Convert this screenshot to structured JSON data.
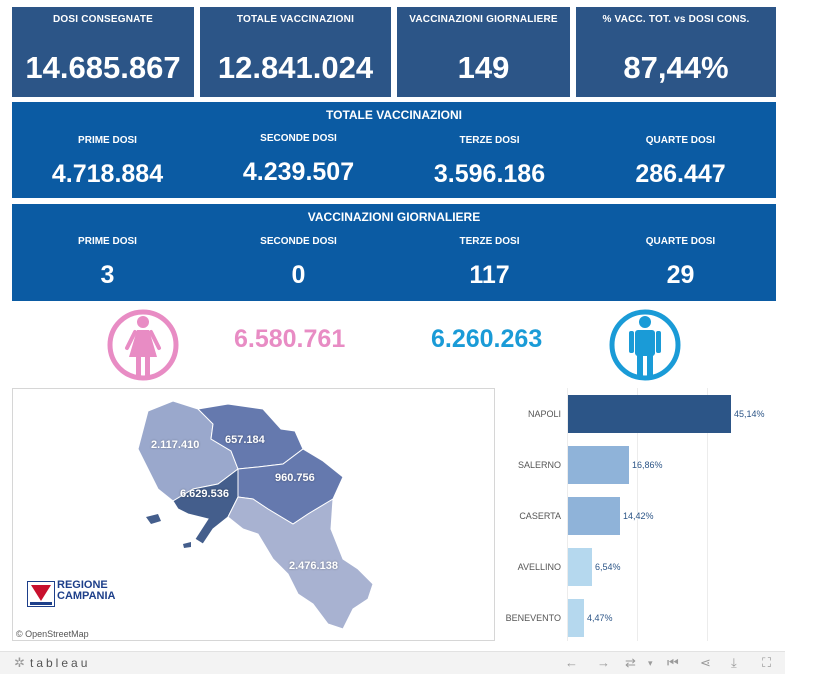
{
  "kpis": [
    {
      "label": "DOSI  CONSEGNATE",
      "value": "14.685.867"
    },
    {
      "label": "TOTALE VACCINAZIONI",
      "value": "12.841.024"
    },
    {
      "label": "VACCINAZIONI GIORNALIERE",
      "value": "149"
    },
    {
      "label": "% VACC. TOT. vs DOSI CONS.",
      "value": "87,44%"
    }
  ],
  "totale": {
    "title": "TOTALE VACCINAZIONI",
    "cols": [
      {
        "label": "PRIME DOSI",
        "value": "4.718.884"
      },
      {
        "label": "SECONDE DOSI",
        "value": "4.239.507"
      },
      {
        "label": "TERZE DOSI",
        "value": "3.596.186"
      },
      {
        "label": "QUARTE DOSI",
        "value": "286.447"
      }
    ]
  },
  "giornaliere": {
    "title": "VACCINAZIONI GIORNALIERE",
    "cols": [
      {
        "label": "PRIME DOSI",
        "value": "3"
      },
      {
        "label": "SECONDE DOSI",
        "value": "0"
      },
      {
        "label": "TERZE DOSI",
        "value": "117"
      },
      {
        "label": "QUARTE DOSI",
        "value": "29"
      }
    ]
  },
  "gender": {
    "female_value": "6.580.761",
    "male_value": "6.260.263",
    "female_icon": "female-icon",
    "male_icon": "male-icon",
    "female_color": "#e88cc4",
    "male_color": "#1a9bd7"
  },
  "map": {
    "labels": {
      "caserta": "2.117.410",
      "benevento": "657.184",
      "avellino": "960.756",
      "napoli": "6.629.536",
      "salerno": "2.476.138"
    },
    "logo_line1": "REGIONE",
    "logo_line2": "CAMPANIA",
    "attribution": "© OpenStreetMap"
  },
  "chart_data": {
    "type": "bar",
    "orientation": "horizontal",
    "categories": [
      "NAPOLI",
      "SALERNO",
      "CASERTA",
      "AVELLINO",
      "BENEVENTO"
    ],
    "values": [
      45.14,
      16.86,
      14.42,
      6.54,
      4.47
    ],
    "value_labels": [
      "45,14%",
      "16,86%",
      "14,42%",
      "6,54%",
      "4,47%"
    ],
    "colors": [
      "#2c5587",
      "#8fb3d9",
      "#8fb3d9",
      "#b5d8ee",
      "#b5d8ee"
    ],
    "xlim": [
      0,
      50
    ]
  },
  "footer": {
    "brand": "tableau",
    "icons": [
      "undo-icon",
      "redo-icon",
      "revert-icon",
      "pause-icon",
      "share-icon",
      "download-icon",
      "fullscreen-icon"
    ]
  }
}
